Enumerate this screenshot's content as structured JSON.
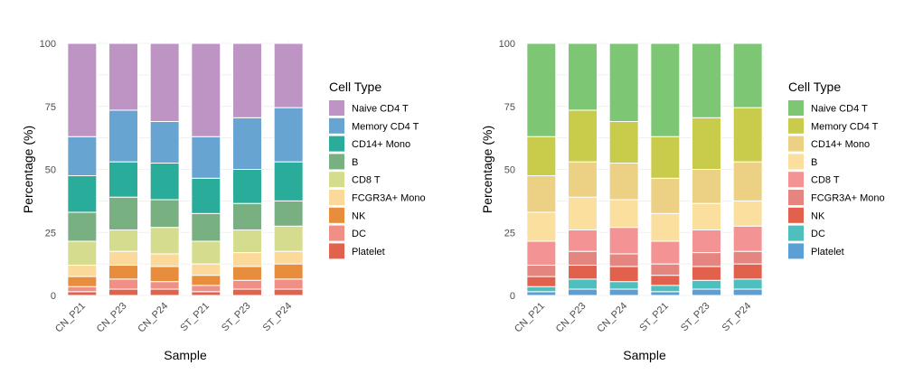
{
  "chart_data": [
    {
      "type": "bar",
      "stacked": true,
      "xlabel": "Sample",
      "ylabel": "Percentage (%)",
      "ylim": [
        0,
        100
      ],
      "yticks": [
        "0",
        "25",
        "50",
        "75",
        "100"
      ],
      "categories": [
        "CN_P21",
        "CN_P23",
        "CN_P24",
        "ST_P21",
        "ST_P23",
        "ST_P24"
      ],
      "legend_title": "Cell Type",
      "legend_position": "right",
      "series": [
        {
          "name": "Platelet",
          "color": "#e1634e",
          "values": [
            1.5,
            2.5,
            2.5,
            1.5,
            2.5,
            2.5
          ]
        },
        {
          "name": "DC",
          "color": "#f08f86",
          "values": [
            2.0,
            4.0,
            3.0,
            2.5,
            3.5,
            4.0
          ]
        },
        {
          "name": "NK",
          "color": "#e88d3c",
          "values": [
            4.0,
            5.5,
            6.0,
            4.0,
            5.5,
            6.0
          ]
        },
        {
          "name": "FCGR3A+ Mono",
          "color": "#fbd99b",
          "values": [
            4.5,
            5.5,
            5.0,
            4.5,
            5.5,
            5.0
          ]
        },
        {
          "name": "CD8 T",
          "color": "#d6dc8e",
          "values": [
            9.5,
            8.5,
            10.5,
            9.0,
            9.0,
            10.0
          ]
        },
        {
          "name": "B",
          "color": "#78b082",
          "values": [
            11.5,
            13.0,
            11.0,
            11.0,
            10.5,
            10.0
          ]
        },
        {
          "name": "CD14+ Mono",
          "color": "#2aac9a",
          "values": [
            14.5,
            14.0,
            14.5,
            14.0,
            13.5,
            15.5
          ]
        },
        {
          "name": "Memory CD4 T",
          "color": "#68a4d2",
          "values": [
            15.5,
            20.5,
            16.5,
            16.5,
            20.5,
            21.5
          ]
        },
        {
          "name": "Naive CD4 T",
          "color": "#be94c5",
          "values": [
            37.0,
            26.5,
            31.0,
            37.0,
            29.5,
            25.5
          ]
        }
      ]
    },
    {
      "type": "bar",
      "stacked": true,
      "xlabel": "Sample",
      "ylabel": "Percentage (%)",
      "ylim": [
        0,
        100
      ],
      "yticks": [
        "0",
        "25",
        "50",
        "75",
        "100"
      ],
      "categories": [
        "CN_P21",
        "CN_P23",
        "CN_P24",
        "ST_P21",
        "ST_P23",
        "ST_P24"
      ],
      "legend_title": "Cell Type",
      "legend_position": "right",
      "series": [
        {
          "name": "Platelet",
          "color": "#5b9fd4",
          "values": [
            1.5,
            2.5,
            2.5,
            1.5,
            2.5,
            2.5
          ]
        },
        {
          "name": "DC",
          "color": "#4fbfbe",
          "values": [
            2.0,
            4.0,
            3.0,
            2.5,
            3.5,
            4.0
          ]
        },
        {
          "name": "NK",
          "color": "#e1614d",
          "values": [
            4.0,
            5.5,
            6.0,
            4.0,
            5.5,
            6.0
          ]
        },
        {
          "name": "FCGR3A+ Mono",
          "color": "#e5857f",
          "values": [
            4.5,
            5.5,
            5.0,
            4.5,
            5.5,
            5.0
          ]
        },
        {
          "name": "CD8 T",
          "color": "#f39394",
          "values": [
            9.5,
            8.5,
            10.5,
            9.0,
            9.0,
            10.0
          ]
        },
        {
          "name": "B",
          "color": "#fbdf9f",
          "values": [
            11.5,
            13.0,
            11.0,
            11.0,
            10.5,
            10.0
          ]
        },
        {
          "name": "CD14+ Mono",
          "color": "#ecd185",
          "values": [
            14.5,
            14.0,
            14.5,
            14.0,
            13.5,
            15.5
          ]
        },
        {
          "name": "Memory CD4 T",
          "color": "#c9cc4b",
          "values": [
            15.5,
            20.5,
            16.5,
            16.5,
            20.5,
            21.5
          ]
        },
        {
          "name": "Naive CD4 T",
          "color": "#7dc674",
          "values": [
            37.0,
            26.5,
            31.0,
            37.0,
            29.5,
            25.5
          ]
        }
      ]
    }
  ]
}
